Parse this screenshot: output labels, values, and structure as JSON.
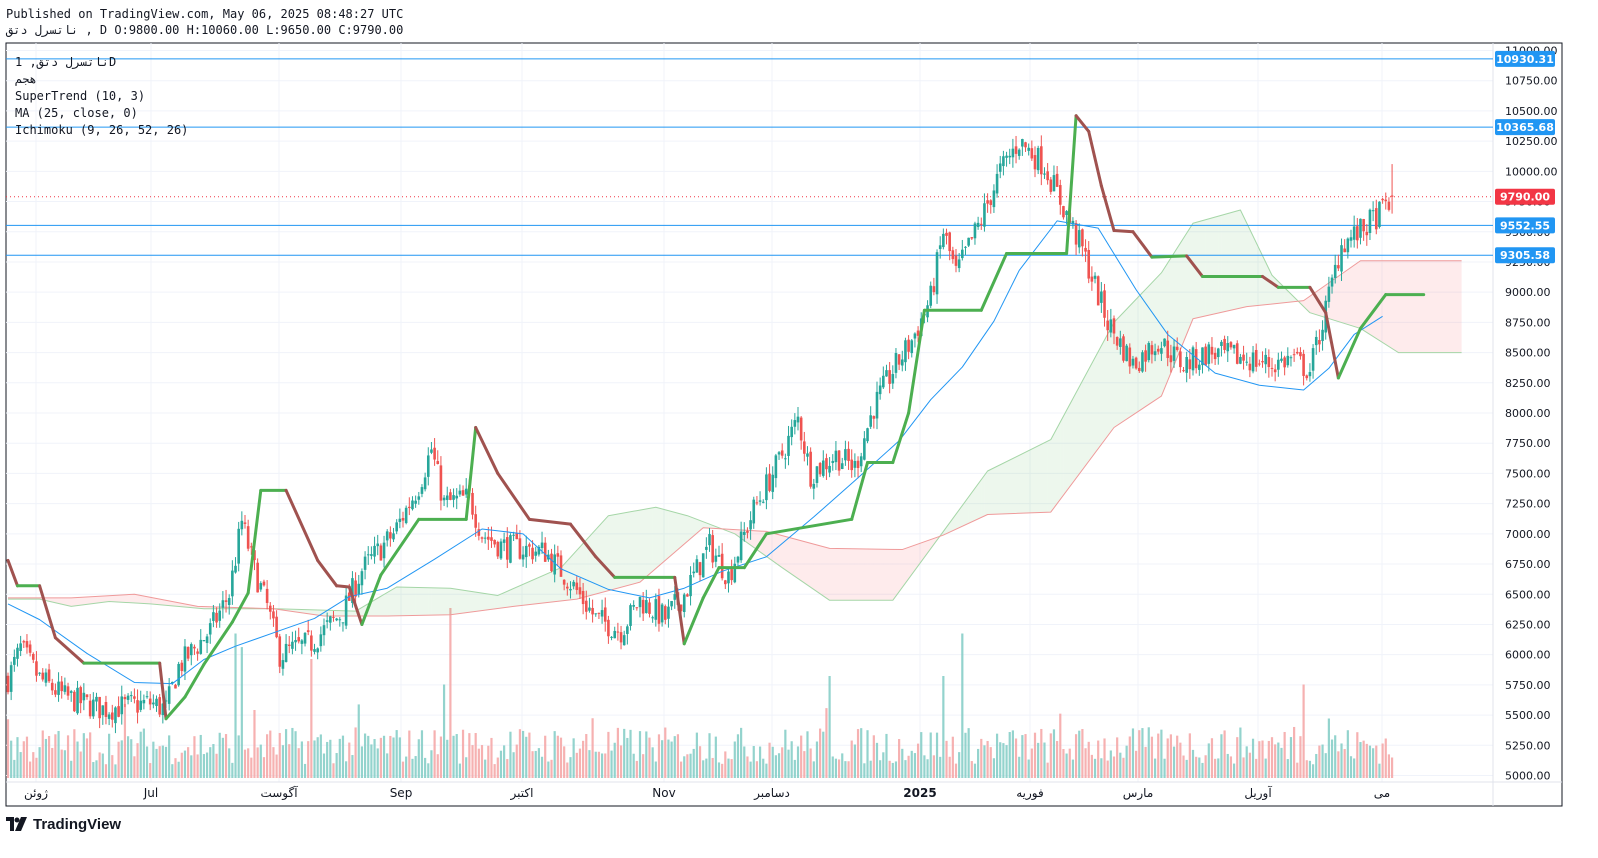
{
  "header": {
    "published": "Published on TradingView.com, May 06, 2025 08:48:27 UTC",
    "ohlc": "ناتسرل دتق , D O:9800.00 H:10060.00 L:9650.00 C:9790.00"
  },
  "legend": {
    "symbol": "ناتسرل دتق, 1D",
    "market": "هجم",
    "supertrend": "SuperTrend (10, 3)",
    "ma": "MA (25, close, 0)",
    "ichimoku": "Ichimoku (9, 26, 52, 26)"
  },
  "logo": {
    "text": "TradingView"
  },
  "chart_data": {
    "type": "candlestick",
    "symbol": "ناتسرل دتق",
    "interval": "1D",
    "last": {
      "open": 9800,
      "high": 10060,
      "low": 9650,
      "close": 9790
    },
    "ylim": [
      5000,
      11000
    ],
    "y_ticks": [
      "11000.00",
      "10750.00",
      "10500.00",
      "10250.00",
      "10000.00",
      "9750.00",
      "9500.00",
      "9250.00",
      "9000.00",
      "8750.00",
      "8500.00",
      "8250.00",
      "8000.00",
      "7750.00",
      "7500.00",
      "7250.00",
      "7000.00",
      "6750.00",
      "6500.00",
      "6250.00",
      "6000.00",
      "5750.00",
      "5500.00",
      "5250.00",
      "5000.00"
    ],
    "x_labels": [
      {
        "label": "ژوئن",
        "bold": false
      },
      {
        "label": "Jul",
        "bold": false
      },
      {
        "label": "آگوست",
        "bold": false
      },
      {
        "label": "Sep",
        "bold": false
      },
      {
        "label": "اکتبر",
        "bold": false
      },
      {
        "label": "Nov",
        "bold": false
      },
      {
        "label": "دسامبر",
        "bold": false
      },
      {
        "label": "2025",
        "bold": true
      },
      {
        "label": "فوریه",
        "bold": false
      },
      {
        "label": "مارس",
        "bold": false
      },
      {
        "label": "آوریل",
        "bold": false
      },
      {
        "label": "می",
        "bold": false
      }
    ],
    "horizontal_levels": [
      {
        "value": 10930.31,
        "label": "10930.31",
        "color": "#2196f3"
      },
      {
        "value": 10365.68,
        "label": "10365.68",
        "color": "#2196f3"
      },
      {
        "value": 9552.55,
        "label": "9552.55",
        "color": "#2196f3"
      },
      {
        "value": 9305.58,
        "label": "9305.58",
        "color": "#2196f3"
      }
    ],
    "last_price": {
      "value": 9790,
      "label": "9790.00",
      "color": "#f23645"
    },
    "series": [
      {
        "name": "SuperTrend (10, 3)",
        "type": "stepline",
        "colors": {
          "up": "#4caf50",
          "down": "#a0524f"
        },
        "points": [
          [
            0,
            6780
          ],
          [
            3,
            6570
          ],
          [
            10,
            6570
          ],
          [
            15,
            6140
          ],
          [
            24,
            5930
          ],
          [
            48,
            5930
          ],
          [
            50,
            5470
          ],
          [
            56,
            5650
          ],
          [
            62,
            5920
          ],
          [
            71,
            6270
          ],
          [
            76,
            6510
          ],
          [
            80,
            7360
          ],
          [
            88,
            7360
          ],
          [
            98,
            6780
          ],
          [
            104,
            6570
          ],
          [
            108,
            6560
          ],
          [
            112,
            6250
          ],
          [
            118,
            6660
          ],
          [
            130,
            7120
          ],
          [
            145,
            7120
          ],
          [
            148,
            7880
          ],
          [
            155,
            7500
          ],
          [
            165,
            7120
          ],
          [
            178,
            7080
          ],
          [
            186,
            6810
          ],
          [
            192,
            6640
          ],
          [
            211,
            6640
          ],
          [
            214,
            6090
          ],
          [
            220,
            6470
          ],
          [
            225,
            6720
          ],
          [
            233,
            6720
          ],
          [
            240,
            7000
          ],
          [
            267,
            7120
          ],
          [
            272,
            7590
          ],
          [
            280,
            7590
          ],
          [
            285,
            8000
          ],
          [
            290,
            8850
          ],
          [
            308,
            8850
          ],
          [
            316,
            9320
          ],
          [
            335,
            9320
          ],
          [
            338,
            10460
          ],
          [
            342,
            10330
          ],
          [
            346,
            9880
          ],
          [
            350,
            9510
          ],
          [
            356,
            9500
          ],
          [
            362,
            9290
          ],
          [
            373,
            9300
          ],
          [
            378,
            9130
          ],
          [
            397,
            9130
          ],
          [
            402,
            9040
          ],
          [
            412,
            9040
          ],
          [
            417,
            8830
          ],
          [
            421,
            8290
          ],
          [
            428,
            8700
          ],
          [
            436,
            8980
          ],
          [
            448,
            8980
          ]
        ]
      },
      {
        "name": "MA (25, close, 0)",
        "type": "line",
        "color": "#2196f3",
        "points": [
          [
            0,
            6420
          ],
          [
            10,
            6290
          ],
          [
            25,
            6010
          ],
          [
            40,
            5770
          ],
          [
            52,
            5760
          ],
          [
            62,
            5960
          ],
          [
            72,
            6070
          ],
          [
            85,
            6190
          ],
          [
            97,
            6300
          ],
          [
            108,
            6480
          ],
          [
            120,
            6550
          ],
          [
            135,
            6790
          ],
          [
            150,
            7040
          ],
          [
            163,
            7000
          ],
          [
            175,
            6710
          ],
          [
            190,
            6540
          ],
          [
            203,
            6470
          ],
          [
            214,
            6550
          ],
          [
            226,
            6690
          ],
          [
            240,
            6810
          ],
          [
            255,
            7140
          ],
          [
            268,
            7440
          ],
          [
            282,
            7770
          ],
          [
            292,
            8110
          ],
          [
            302,
            8380
          ],
          [
            312,
            8760
          ],
          [
            320,
            9180
          ],
          [
            332,
            9590
          ],
          [
            345,
            9530
          ],
          [
            357,
            9020
          ],
          [
            367,
            8650
          ],
          [
            382,
            8330
          ],
          [
            396,
            8230
          ],
          [
            410,
            8190
          ],
          [
            418,
            8370
          ],
          [
            426,
            8650
          ],
          [
            435,
            8800
          ]
        ]
      },
      {
        "name": "Ichimoku Senkou A",
        "type": "line",
        "color": "#a5d6a7",
        "points": [
          [
            0,
            6460
          ],
          [
            10,
            6460
          ],
          [
            20,
            6400
          ],
          [
            32,
            6440
          ],
          [
            45,
            6420
          ],
          [
            62,
            6380
          ],
          [
            85,
            6380
          ],
          [
            110,
            6360
          ],
          [
            123,
            6560
          ],
          [
            140,
            6550
          ],
          [
            155,
            6490
          ],
          [
            175,
            6720
          ],
          [
            190,
            7150
          ],
          [
            205,
            7220
          ],
          [
            215,
            7150
          ],
          [
            230,
            7000
          ],
          [
            245,
            6720
          ],
          [
            260,
            6450
          ],
          [
            280,
            6450
          ],
          [
            296,
            7020
          ],
          [
            310,
            7520
          ],
          [
            330,
            7780
          ],
          [
            350,
            8750
          ],
          [
            365,
            9160
          ],
          [
            375,
            9570
          ],
          [
            390,
            9680
          ],
          [
            400,
            9140
          ],
          [
            412,
            8830
          ],
          [
            428,
            8700
          ],
          [
            440,
            8500
          ],
          [
            460,
            8500
          ]
        ]
      },
      {
        "name": "Ichimoku Senkou B",
        "type": "line",
        "color": "#ef9a9a",
        "points": [
          [
            0,
            6470
          ],
          [
            20,
            6470
          ],
          [
            40,
            6500
          ],
          [
            60,
            6400
          ],
          [
            84,
            6380
          ],
          [
            100,
            6320
          ],
          [
            120,
            6320
          ],
          [
            140,
            6330
          ],
          [
            160,
            6400
          ],
          [
            180,
            6460
          ],
          [
            200,
            6600
          ],
          [
            220,
            7050
          ],
          [
            240,
            7020
          ],
          [
            260,
            6880
          ],
          [
            283,
            6870
          ],
          [
            296,
            6990
          ],
          [
            310,
            7160
          ],
          [
            330,
            7180
          ],
          [
            350,
            7880
          ],
          [
            365,
            8140
          ],
          [
            375,
            8780
          ],
          [
            392,
            8880
          ],
          [
            410,
            8930
          ],
          [
            428,
            9260
          ],
          [
            440,
            9260
          ],
          [
            460,
            9260
          ]
        ]
      },
      {
        "name": "Volume",
        "type": "bar",
        "colors": {
          "up": "#80cbc4",
          "down": "#f5a3a3"
        }
      }
    ]
  }
}
